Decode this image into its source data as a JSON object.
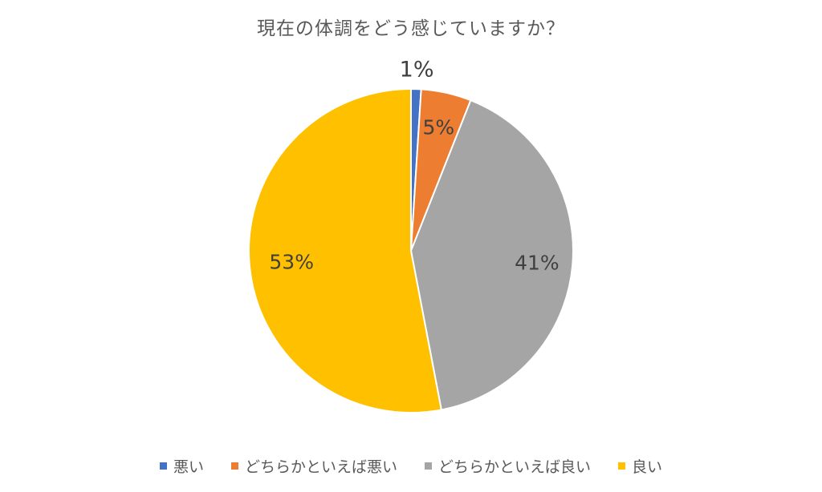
{
  "chart_data": {
    "type": "pie",
    "title": "現在の体調をどう感じていますか？",
    "categories": [
      "悪い",
      "どちらかといえば悪い",
      "どちらかといえば良い",
      "良い"
    ],
    "values": [
      1,
      5,
      41,
      53
    ],
    "data_labels": [
      "1%",
      "5%",
      "41%",
      "53%"
    ],
    "colors": [
      "#4472C4",
      "#ED7D31",
      "#A5A5A5",
      "#FFC000"
    ],
    "legend_position": "bottom"
  }
}
